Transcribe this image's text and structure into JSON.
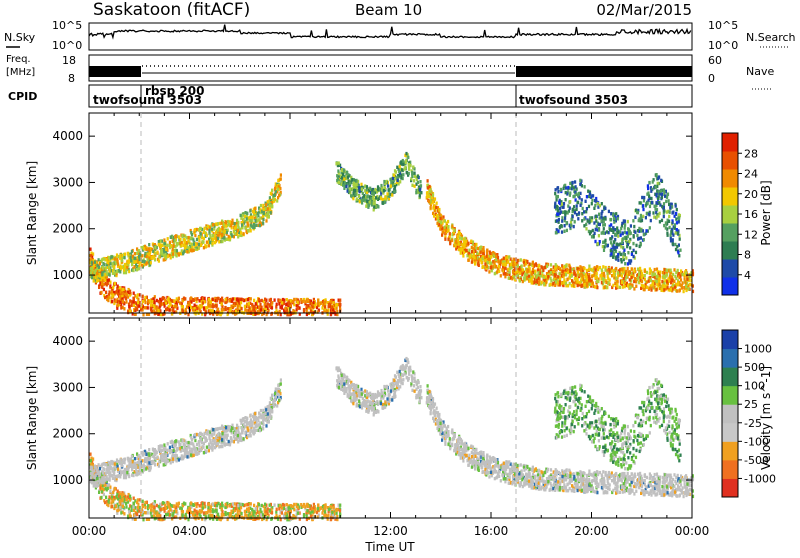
{
  "header": {
    "station": "Saskatoon (fitACF)",
    "beam": "Beam 10",
    "date": "02/Mar/2015"
  },
  "noise_panel": {
    "left_label": "N.Sky",
    "right_label": "N.Search",
    "left_ticks": [
      "10^5",
      "10^0"
    ],
    "right_ticks": [
      "10^5",
      "10^0"
    ]
  },
  "freq_panel": {
    "left_label_lines": [
      "Freq.",
      "[MHz]"
    ],
    "right_label": "Nave",
    "left_ticks": [
      "18",
      "8"
    ],
    "right_ticks": [
      "60",
      "0"
    ]
  },
  "cpid_panel": {
    "label": "CPID",
    "segments": [
      {
        "name": "twofsound 3503",
        "start_hour": 0.0
      },
      {
        "name": "rbsp 200",
        "start_hour": 2.0
      },
      {
        "name": "twofsound 3503",
        "start_hour": 17.0
      }
    ]
  },
  "colors": {
    "power": [
      "#1030e8",
      "#1e4aa8",
      "#2e7d52",
      "#55a060",
      "#a8d040",
      "#f2c800",
      "#f08a00",
      "#e85000",
      "#e02000"
    ],
    "velocity": [
      "#1a40a8",
      "#2a6fae",
      "#2e8050",
      "#68c040",
      "#c0c0c0",
      "#c8c8c8",
      "#f0a020",
      "#f07020",
      "#e03020"
    ]
  },
  "chart_data": [
    {
      "type": "heatmap",
      "title": "Power",
      "ylabel": "Slant Range [km]",
      "xlabel": "",
      "ylim": [
        180,
        4500
      ],
      "xlim": [
        0,
        24
      ],
      "yticks": [
        1000,
        2000,
        3000,
        4000
      ],
      "colorbar": {
        "label": "Power [dB]",
        "ticks": [
          "28",
          "24",
          "20",
          "16",
          "12",
          "8",
          "4"
        ]
      },
      "features": [
        {
          "name": "near-range band",
          "hours": [
            0,
            0.4,
            1,
            2,
            3,
            5,
            7,
            9,
            10
          ],
          "range_km": [
            1400,
            900,
            600,
            350,
            300,
            280,
            260,
            250,
            250
          ],
          "power_db": 26
        },
        {
          "name": "rising arc",
          "hours": [
            0,
            1.5,
            3,
            4.5,
            6,
            7,
            7.6
          ],
          "range_km": [
            1100,
            1300,
            1600,
            1850,
            2100,
            2400,
            3000
          ],
          "power_db": 18
        },
        {
          "name": "midday arch",
          "hours": [
            9.8,
            10.5,
            11.3,
            12,
            12.6,
            13.2
          ],
          "range_km": [
            3300,
            2900,
            2650,
            2950,
            3450,
            2800
          ],
          "power_db": 12
        },
        {
          "name": "evening descent",
          "hours": [
            13.4,
            14,
            15,
            16,
            17,
            18,
            20,
            22,
            24
          ],
          "range_km": [
            2900,
            2100,
            1600,
            1300,
            1150,
            1050,
            1000,
            950,
            900
          ],
          "power_db": 22
        },
        {
          "name": "evening patches",
          "hours": [
            18.5,
            19.5,
            20.5,
            21.5,
            22.5,
            23.5
          ],
          "range_km": [
            2400,
            2600,
            2000,
            1700,
            2800,
            1900
          ],
          "power_db": 8
        }
      ]
    },
    {
      "type": "heatmap",
      "title": "Velocity",
      "ylabel": "Slant Range [km]",
      "xlabel": "Time UT",
      "ylim": [
        180,
        4500
      ],
      "xlim": [
        0,
        24
      ],
      "yticks": [
        1000,
        2000,
        3000,
        4000
      ],
      "xticks": [
        "00:00",
        "04:00",
        "08:00",
        "12:00",
        "16:00",
        "20:00",
        "00:00"
      ],
      "colorbar": {
        "label": "Velocity [m s^-1]",
        "ticks": [
          "1000",
          "500",
          "100",
          "25",
          "-25",
          "-100",
          "-500",
          "-1000"
        ]
      },
      "features": [
        {
          "name": "near-range band",
          "hours": [
            0,
            0.4,
            1,
            2,
            3,
            5,
            7,
            9,
            10
          ],
          "range_km": [
            1400,
            900,
            600,
            350,
            300,
            280,
            260,
            250,
            250
          ],
          "velocity_ms": -150
        },
        {
          "name": "rising arc",
          "hours": [
            0,
            1.5,
            3,
            4.5,
            6,
            7,
            7.6
          ],
          "range_km": [
            1100,
            1300,
            1600,
            1850,
            2100,
            2400,
            3000
          ],
          "velocity_ms": 0
        },
        {
          "name": "midday arch",
          "hours": [
            9.8,
            10.5,
            11.3,
            12,
            12.6,
            13.2
          ],
          "range_km": [
            3300,
            2900,
            2650,
            2950,
            3450,
            2800
          ],
          "velocity_ms": 0
        },
        {
          "name": "evening descent",
          "hours": [
            13.4,
            14,
            15,
            16,
            17,
            18,
            20,
            22,
            24
          ],
          "range_km": [
            2900,
            2100,
            1600,
            1300,
            1150,
            1050,
            1000,
            950,
            900
          ],
          "velocity_ms": 0
        },
        {
          "name": "evening patches",
          "hours": [
            18.5,
            19.5,
            20.5,
            21.5,
            22.5,
            23.5
          ],
          "range_km": [
            2400,
            2600,
            2000,
            1700,
            2800,
            1900
          ],
          "velocity_ms": 50
        }
      ]
    }
  ]
}
